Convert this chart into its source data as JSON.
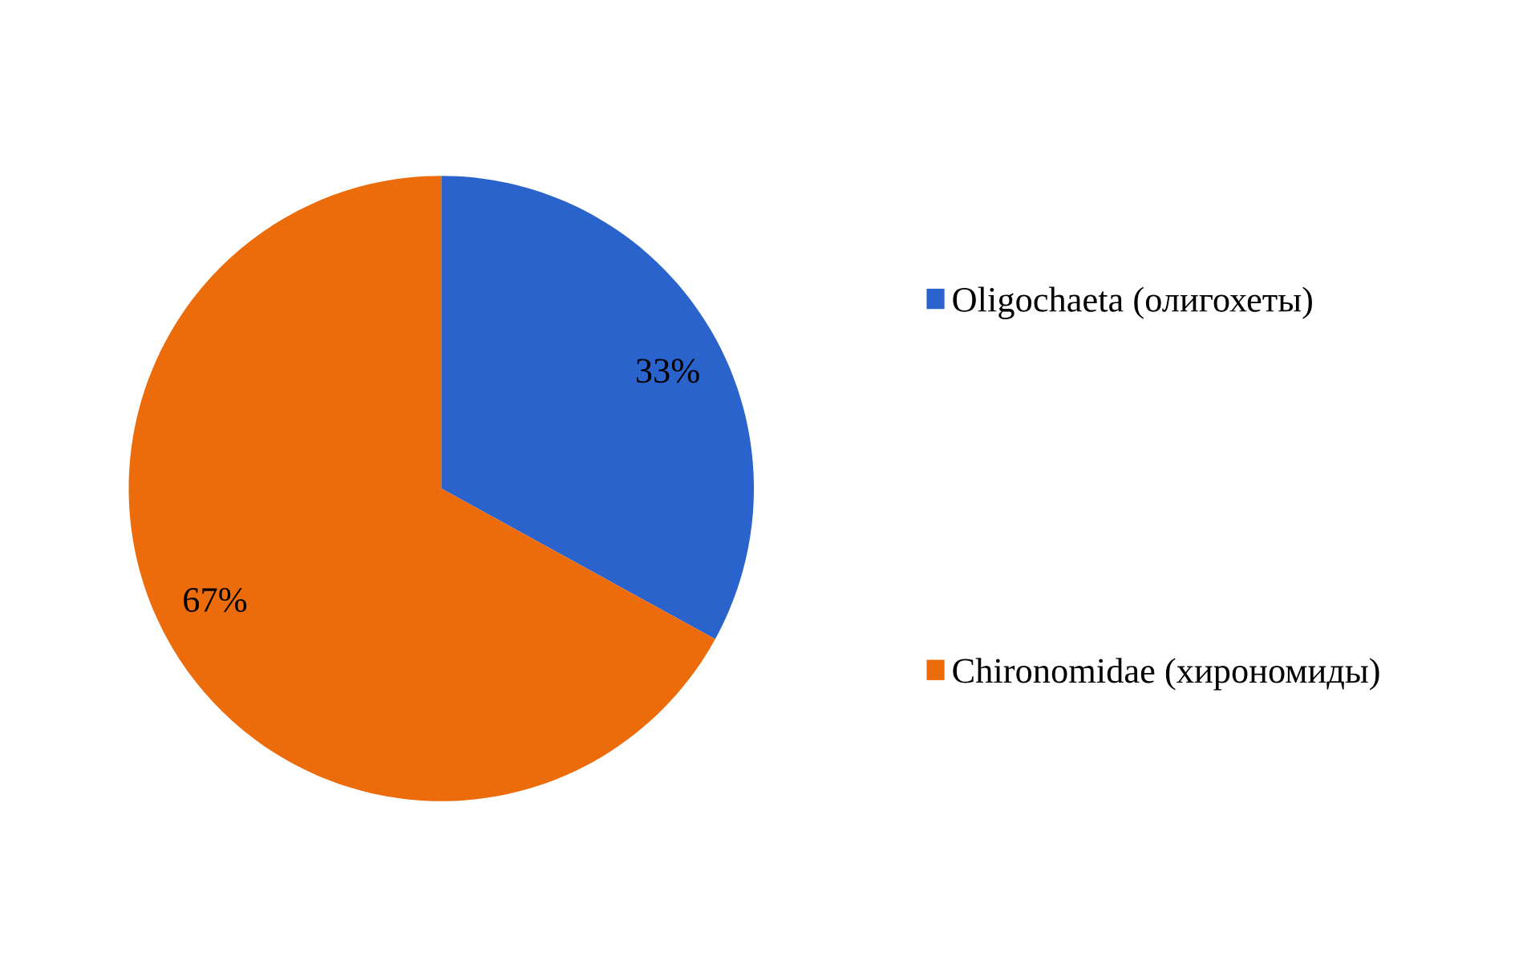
{
  "chart_data": {
    "type": "pie",
    "categories": [
      "Oligochaeta (олигохеты)",
      "Chironomidae (хирономиды)"
    ],
    "values": [
      33,
      67
    ],
    "colors": [
      "#2b63cc",
      "#ec6c0c"
    ],
    "value_labels": [
      "33%",
      "67%"
    ],
    "legend": "right"
  }
}
